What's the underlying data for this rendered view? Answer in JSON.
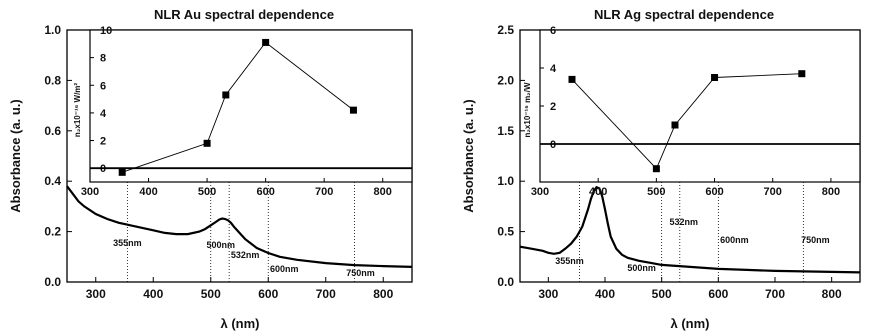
{
  "chart_data": [
    {
      "type": "line",
      "title": "NLR Au spectral dependence",
      "xlabel": "λ (nm)",
      "ylabel": "Absorbance (a. u.)",
      "xlim": [
        250,
        850
      ],
      "ylim": [
        0.0,
        1.0
      ],
      "xticks": [
        300,
        400,
        500,
        600,
        700,
        800
      ],
      "xtick_labels": [
        "300",
        "400",
        "500",
        "600",
        "700",
        "800"
      ],
      "yticks": [
        0.0,
        0.2,
        0.4,
        0.6,
        0.8,
        1.0
      ],
      "ytick_labels": [
        "0.0",
        "0.2",
        "0.4",
        "0.6",
        "0.8",
        "1.0"
      ],
      "series": [
        {
          "x": [
            250,
            260,
            270,
            280,
            300,
            320,
            340,
            360,
            380,
            400,
            420,
            440,
            460,
            480,
            490,
            500,
            510,
            515,
            520,
            525,
            530,
            535,
            540,
            550,
            560,
            580,
            600,
            620,
            650,
            700,
            750,
            800,
            850
          ],
          "values": [
            0.38,
            0.35,
            0.32,
            0.3,
            0.27,
            0.25,
            0.235,
            0.225,
            0.215,
            0.205,
            0.195,
            0.19,
            0.19,
            0.2,
            0.21,
            0.225,
            0.24,
            0.248,
            0.252,
            0.25,
            0.245,
            0.235,
            0.22,
            0.195,
            0.17,
            0.135,
            0.115,
            0.1,
            0.088,
            0.075,
            0.067,
            0.063,
            0.06
          ]
        }
      ],
      "annotations": [
        {
          "label": "355nm",
          "x": 355
        },
        {
          "label": "500nm",
          "x": 500
        },
        {
          "label": "532nm",
          "x": 532
        },
        {
          "label": "600nm",
          "x": 600
        },
        {
          "label": "750nm",
          "x": 750
        }
      ],
      "inset": {
        "type": "line",
        "ylabel": "n₂x10⁻¹⁶ W/m²",
        "xlim": [
          300,
          850
        ],
        "ylim": [
          -1,
          10
        ],
        "xticks": [
          300,
          400,
          500,
          600,
          700,
          800
        ],
        "xtick_labels": [
          "300",
          "400",
          "500",
          "600",
          "700",
          "800"
        ],
        "yticks": [
          0,
          2,
          4,
          6,
          8,
          10
        ],
        "ytick_labels": [
          "0",
          "2",
          "4",
          "6",
          "8",
          "10"
        ],
        "x": [
          355,
          500,
          532,
          600,
          750
        ],
        "values": [
          -0.3,
          1.8,
          5.3,
          9.1,
          4.2
        ]
      }
    },
    {
      "type": "line",
      "title": "NLR Ag spectral dependence",
      "xlabel": "λ (nm)",
      "ylabel": "Absorbance (a. u.)",
      "xlim": [
        250,
        850
      ],
      "ylim": [
        0.0,
        2.5
      ],
      "xticks": [
        300,
        400,
        500,
        600,
        700,
        800
      ],
      "xtick_labels": [
        "300",
        "400",
        "500",
        "600",
        "700",
        "800"
      ],
      "yticks": [
        0.0,
        0.5,
        1.0,
        1.5,
        2.0,
        2.5
      ],
      "ytick_labels": [
        "0.0",
        "0.5",
        "1.0",
        "1.5",
        "2.0",
        "2.5"
      ],
      "series": [
        {
          "x": [
            250,
            270,
            290,
            300,
            310,
            320,
            330,
            340,
            350,
            360,
            370,
            375,
            380,
            385,
            390,
            395,
            400,
            405,
            410,
            420,
            430,
            440,
            460,
            480,
            500,
            550,
            600,
            650,
            700,
            750,
            800,
            850
          ],
          "values": [
            0.35,
            0.33,
            0.31,
            0.29,
            0.28,
            0.29,
            0.33,
            0.38,
            0.45,
            0.55,
            0.72,
            0.82,
            0.9,
            0.94,
            0.93,
            0.85,
            0.72,
            0.58,
            0.45,
            0.33,
            0.27,
            0.24,
            0.21,
            0.19,
            0.17,
            0.15,
            0.13,
            0.12,
            0.11,
            0.105,
            0.1,
            0.095
          ]
        }
      ],
      "annotations": [
        {
          "label": "355nm",
          "x": 355
        },
        {
          "label": "500nm",
          "x": 500
        },
        {
          "label": "532nm",
          "x": 532
        },
        {
          "label": "600nm",
          "x": 600
        },
        {
          "label": "750nm",
          "x": 750
        }
      ],
      "inset": {
        "type": "line",
        "ylabel": "n₂x10⁻¹⁶ m₂/W",
        "xlim": [
          300,
          850
        ],
        "ylim": [
          -2,
          6
        ],
        "xticks": [
          300,
          400,
          500,
          600,
          700,
          800
        ],
        "xtick_labels": [
          "300",
          "400",
          "500",
          "600",
          "700",
          "800"
        ],
        "yticks": [
          0,
          2,
          4,
          6
        ],
        "ytick_labels": [
          "0",
          "2",
          "4",
          "6"
        ],
        "x": [
          355,
          500,
          532,
          600,
          750
        ],
        "values": [
          3.4,
          -1.3,
          1.0,
          3.5,
          3.7
        ]
      }
    }
  ]
}
